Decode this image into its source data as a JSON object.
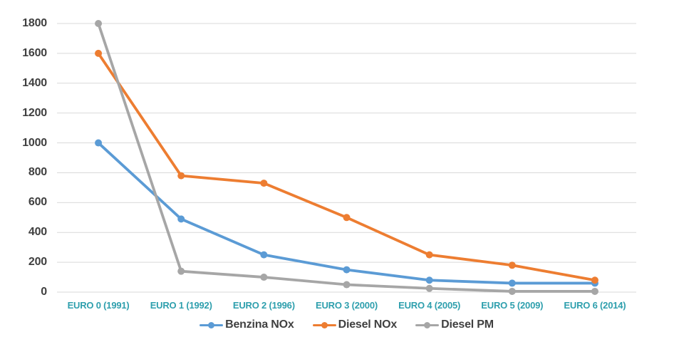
{
  "chart_data": {
    "type": "line",
    "title": "",
    "xlabel": "",
    "ylabel": "",
    "categories": [
      "EURO 0 (1991)",
      "EURO 1 (1992)",
      "EURO 2 (1996)",
      "EURO 3 (2000)",
      "EURO 4 (2005)",
      "EURO 5 (2009)",
      "EURO 6 (2014)"
    ],
    "series": [
      {
        "name": "Benzina NOx",
        "color": "#5B9BD5",
        "values": [
          1000,
          490,
          250,
          150,
          80,
          60,
          60
        ]
      },
      {
        "name": "Diesel NOx",
        "color": "#ED7D31",
        "values": [
          1600,
          780,
          730,
          500,
          250,
          180,
          80
        ]
      },
      {
        "name": "Diesel PM",
        "color": "#A6A6A6",
        "values": [
          1800,
          140,
          100,
          50,
          25,
          5,
          5
        ]
      }
    ],
    "y_ticks": [
      0,
      200,
      400,
      600,
      800,
      1000,
      1200,
      1400,
      1600,
      1800
    ],
    "ylim": [
      0,
      1800
    ],
    "grid": "horizontal",
    "legend_position": "bottom",
    "colors": {
      "background": "#FFFFFF",
      "gridline": "#D9D9D9",
      "y_label_text": "#3F3F3F",
      "x_label_text": "#2E9FAD",
      "legend_text": "#404040"
    }
  }
}
